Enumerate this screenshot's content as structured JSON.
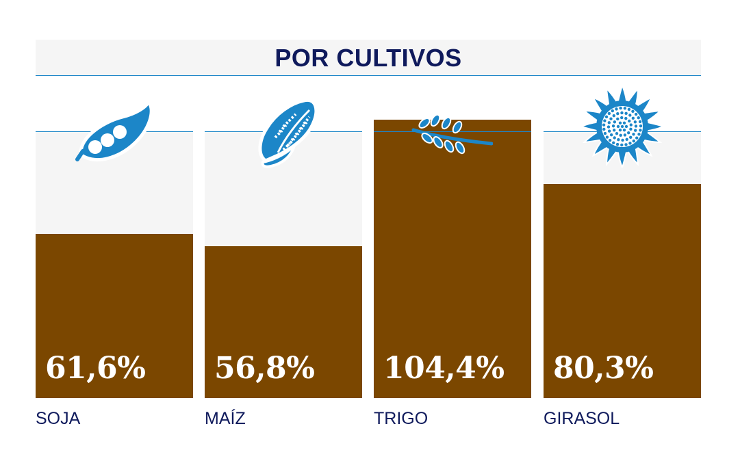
{
  "chart_data": {
    "type": "bar",
    "title": "POR CULTIVOS",
    "categories": [
      "SOJA",
      "MAÍZ",
      "TRIGO",
      "GIRASOL"
    ],
    "values": [
      61.6,
      56.8,
      104.4,
      80.3
    ],
    "value_labels": [
      "61,6%",
      "56,8%",
      "104,4%",
      "80,3%"
    ],
    "ylim": [
      0,
      100
    ],
    "reference_value": 100,
    "icons": [
      "soybean-icon",
      "corn-icon",
      "wheat-icon",
      "sunflower-icon"
    ],
    "colors": {
      "bar": "#7b4700",
      "track": "#f5f5f5",
      "reference_line": "#1c86c8",
      "icon": "#1c86c8",
      "title": "#0f1a5c",
      "category_label": "#0f1a5c",
      "value_label": "#ffffff"
    }
  }
}
